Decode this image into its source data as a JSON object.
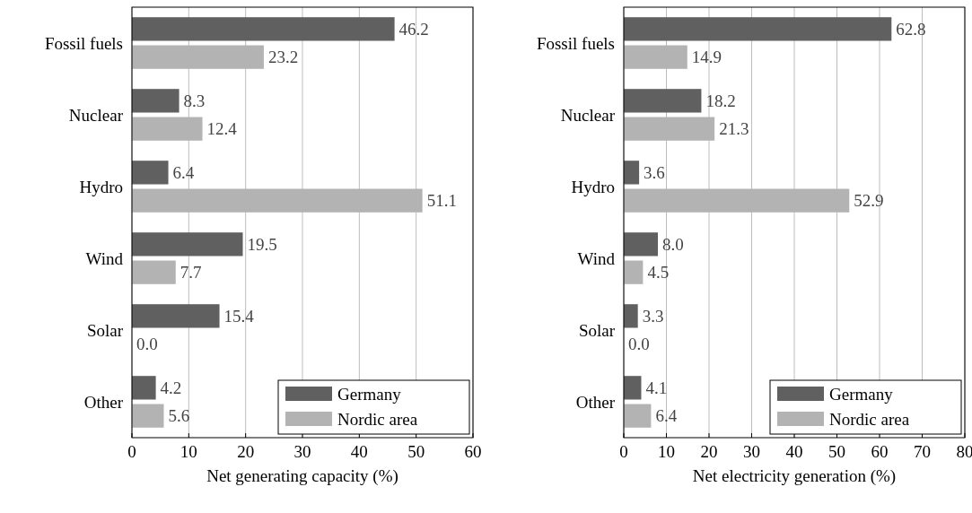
{
  "chart_data": [
    {
      "type": "bar",
      "orientation": "horizontal",
      "categories": [
        "Fossil fuels",
        "Nuclear",
        "Hydro",
        "Wind",
        "Solar",
        "Other"
      ],
      "xlabel": "Net generating capacity (%)",
      "xlim": [
        0,
        60
      ],
      "xticks": [
        0,
        10,
        20,
        30,
        40,
        50,
        60
      ],
      "grid": "x",
      "legend": "bottom right",
      "series": [
        {
          "name": "Germany",
          "color": "#606060",
          "values": [
            46.2,
            8.3,
            6.4,
            19.5,
            15.4,
            4.2
          ],
          "value_labels": [
            "46.2",
            "8.3",
            "6.4",
            "19.5",
            "15.4",
            "4.2"
          ]
        },
        {
          "name": "Nordic area",
          "color": "#b3b3b3",
          "values": [
            23.2,
            12.4,
            51.1,
            7.7,
            0.0,
            5.6
          ],
          "value_labels": [
            "23.2",
            "12.4",
            "51.1",
            "7.7",
            "0.0",
            "5.6"
          ]
        }
      ]
    },
    {
      "type": "bar",
      "orientation": "horizontal",
      "categories": [
        "Fossil fuels",
        "Nuclear",
        "Hydro",
        "Wind",
        "Solar",
        "Other"
      ],
      "xlabel": "Net electricity generation (%)",
      "xlim": [
        0,
        80
      ],
      "xticks": [
        0,
        10,
        20,
        30,
        40,
        50,
        60,
        70,
        80
      ],
      "grid": "x",
      "legend": "bottom right",
      "series": [
        {
          "name": "Germany",
          "color": "#606060",
          "values": [
            62.8,
            18.2,
            3.6,
            8.0,
            3.3,
            4.1
          ],
          "value_labels": [
            "62.8",
            "18.2",
            "3.6",
            "8.0",
            "3.3",
            "4.1"
          ]
        },
        {
          "name": "Nordic area",
          "color": "#b3b3b3",
          "values": [
            14.9,
            21.3,
            52.9,
            4.5,
            0.0,
            6.4
          ],
          "value_labels": [
            "14.9",
            "21.3",
            "52.9",
            "4.5",
            "0.0",
            "6.4"
          ]
        }
      ]
    }
  ]
}
